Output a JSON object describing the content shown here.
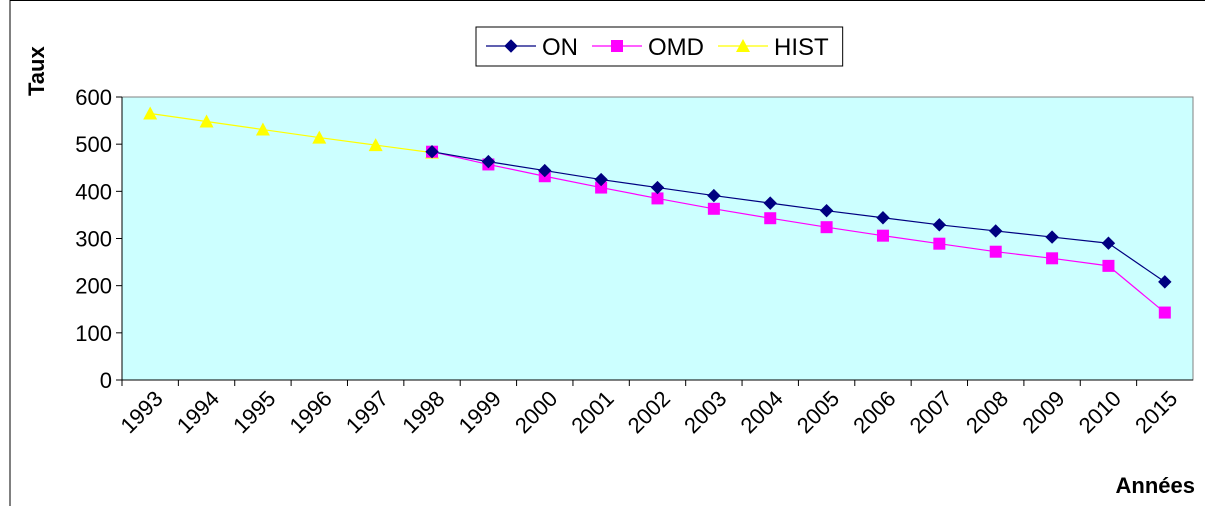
{
  "chart_data": {
    "type": "line",
    "y_label": "Taux",
    "x_label": "Années",
    "categories": [
      "1993",
      "1994",
      "1995",
      "1996",
      "1997",
      "1998",
      "1999",
      "2000",
      "2001",
      "2002",
      "2003",
      "2004",
      "2005",
      "2006",
      "2007",
      "2008",
      "2009",
      "2010",
      "2015"
    ],
    "series": [
      {
        "name": "ON",
        "color": "#000080",
        "marker": "diamond",
        "values": [
          null,
          null,
          null,
          null,
          null,
          484,
          463,
          444,
          425,
          408,
          391,
          375,
          359,
          344,
          329,
          316,
          303,
          290,
          208
        ]
      },
      {
        "name": "OMD",
        "color": "#ff00ff",
        "marker": "square",
        "values": [
          null,
          null,
          null,
          null,
          null,
          484,
          457,
          432,
          408,
          385,
          363,
          343,
          324,
          306,
          289,
          272,
          258,
          242,
          143
        ]
      },
      {
        "name": "HIST",
        "color": "#ffff00",
        "marker": "triangle",
        "values": [
          565,
          548,
          531,
          514,
          498,
          482,
          null,
          null,
          null,
          null,
          null,
          null,
          null,
          null,
          null,
          null,
          null,
          null,
          null
        ]
      }
    ],
    "ylim": [
      0,
      600
    ],
    "yticks": [
      0,
      100,
      200,
      300,
      400,
      500,
      600
    ],
    "plot_background": "#ccffff",
    "legend": "top"
  }
}
